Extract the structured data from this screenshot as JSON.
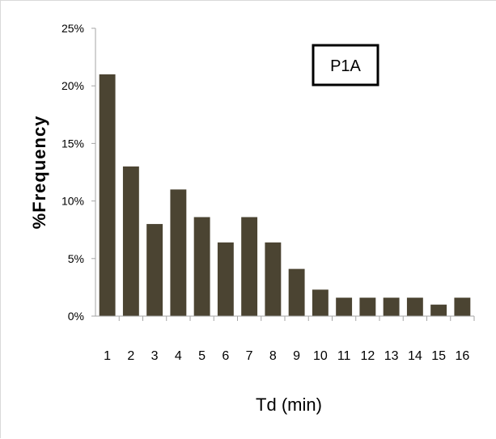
{
  "chart_data": {
    "type": "bar",
    "title": "",
    "annotation": "P1A",
    "xlabel": "Td (min)",
    "ylabel": "%Frequency",
    "categories": [
      "1",
      "2",
      "3",
      "4",
      "5",
      "6",
      "7",
      "8",
      "9",
      "10",
      "11",
      "12",
      "13",
      "14",
      "15",
      "16"
    ],
    "values": [
      21,
      13,
      8,
      11,
      8.6,
      6.4,
      8.6,
      6.4,
      4.1,
      2.3,
      1.6,
      1.6,
      1.6,
      1.6,
      1,
      1.6
    ],
    "ylim": [
      0,
      25
    ],
    "yticks": [
      0,
      5,
      10,
      15,
      20,
      25
    ],
    "ytick_labels": [
      "0%",
      "5%",
      "10%",
      "15%",
      "20%",
      "25%"
    ],
    "grid": false,
    "legend": "none",
    "bar_color": "#4b4432",
    "axis_color": "#a6a6a6",
    "text_color": "#000000"
  }
}
